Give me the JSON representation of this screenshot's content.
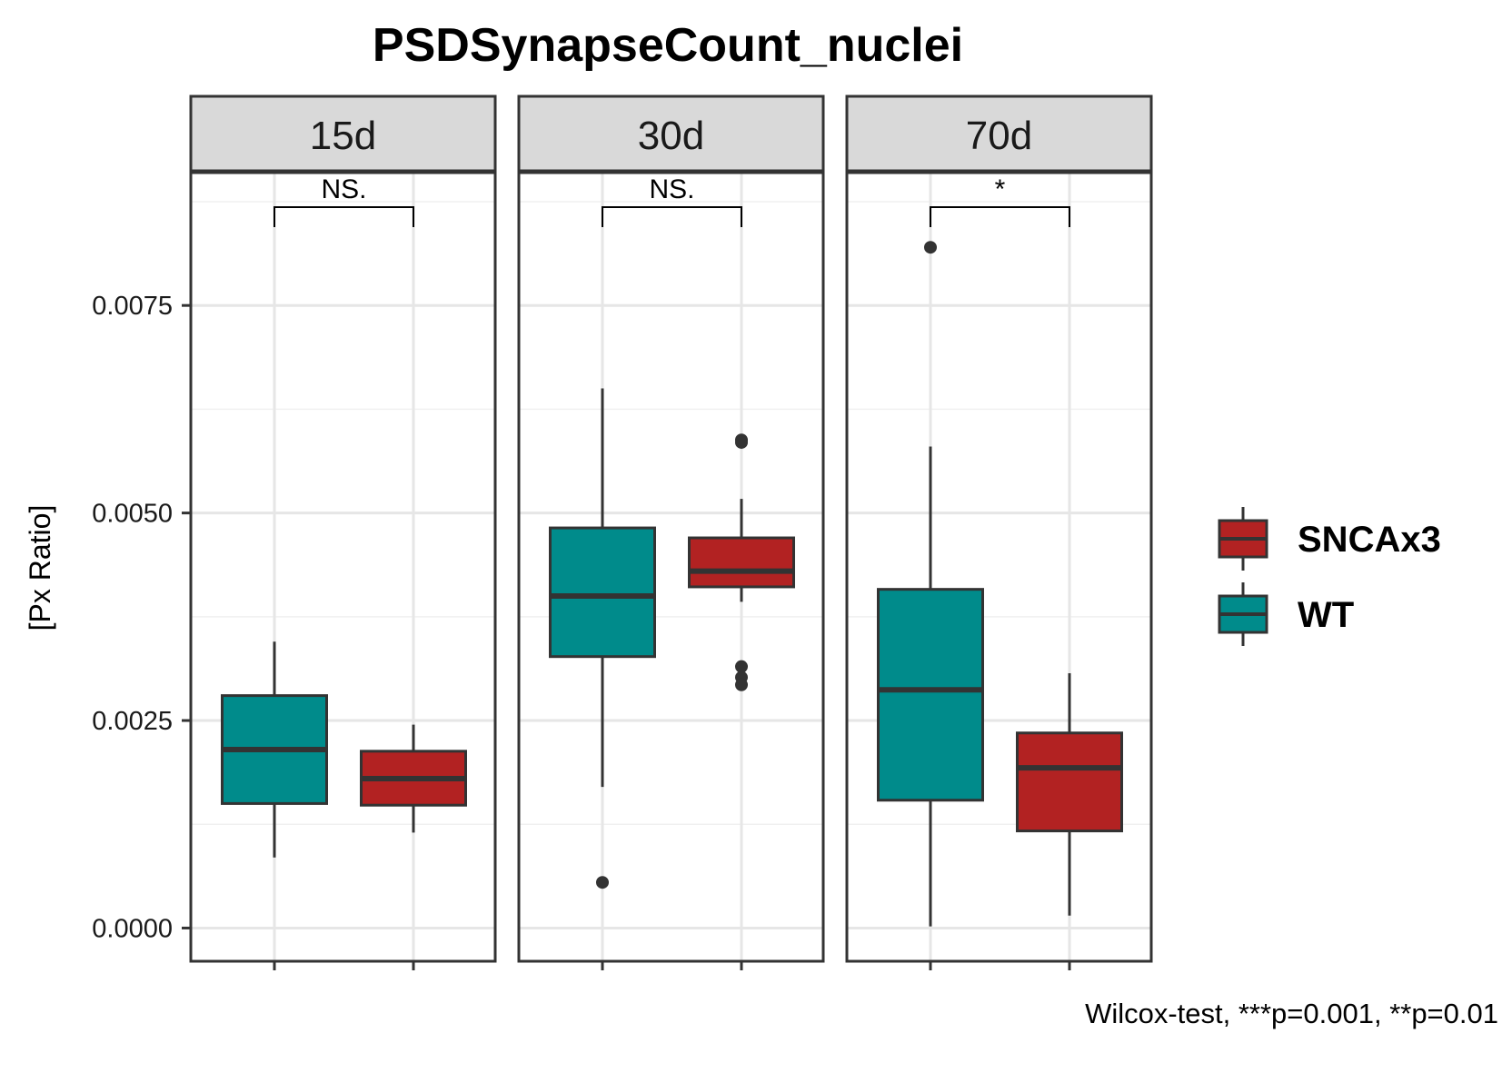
{
  "chart_data": {
    "type": "boxplot",
    "title": "PSDSynapseCount_nuclei",
    "ylabel": "[Px Ratio]",
    "xlabel": "",
    "ylim": [
      -0.0004,
      0.0091
    ],
    "yticks": [
      0.0,
      0.0025,
      0.005,
      0.0075
    ],
    "ytick_labels": [
      "0.0000",
      "0.0025",
      "0.0050",
      "0.0075"
    ],
    "groups": [
      "WT",
      "SNCAx3"
    ],
    "colors": {
      "WT": "#008B8B",
      "SNCAx3": "#B22222",
      "outline": "#333333"
    },
    "facets": [
      {
        "label": "15d",
        "significance": "NS.",
        "boxes": [
          {
            "group": "WT",
            "whisker_low": 0.00085,
            "q1": 0.0015,
            "median": 0.00215,
            "q3": 0.0028,
            "whisker_high": 0.00345,
            "outliers": []
          },
          {
            "group": "SNCAx3",
            "whisker_low": 0.00115,
            "q1": 0.00148,
            "median": 0.0018,
            "q3": 0.00213,
            "whisker_high": 0.00245,
            "outliers": []
          }
        ]
      },
      {
        "label": "30d",
        "significance": "NS.",
        "boxes": [
          {
            "group": "WT",
            "whisker_low": 0.0017,
            "q1": 0.00327,
            "median": 0.004,
            "q3": 0.00482,
            "whisker_high": 0.0065,
            "outliers": [
              0.00055
            ]
          },
          {
            "group": "SNCAx3",
            "whisker_low": 0.00393,
            "q1": 0.00411,
            "median": 0.0043,
            "q3": 0.0047,
            "whisker_high": 0.00517,
            "outliers": [
              0.00588,
              0.00585,
              0.00315,
              0.00302,
              0.00293
            ]
          }
        ]
      },
      {
        "label": "70d",
        "significance": "*",
        "boxes": [
          {
            "group": "WT",
            "whisker_low": 2e-05,
            "q1": 0.00154,
            "median": 0.00287,
            "q3": 0.00408,
            "whisker_high": 0.0058,
            "outliers": [
              0.0082
            ]
          },
          {
            "group": "SNCAx3",
            "whisker_low": 0.00015,
            "q1": 0.00117,
            "median": 0.00193,
            "q3": 0.00235,
            "whisker_high": 0.00307,
            "outliers": []
          }
        ]
      }
    ],
    "legend": {
      "position": "right",
      "items": [
        {
          "label": "SNCAx3",
          "group": "SNCAx3"
        },
        {
          "label": "WT",
          "group": "WT"
        }
      ]
    },
    "caption": "Wilcox-test, ***p=0.001, **p=0.01"
  }
}
